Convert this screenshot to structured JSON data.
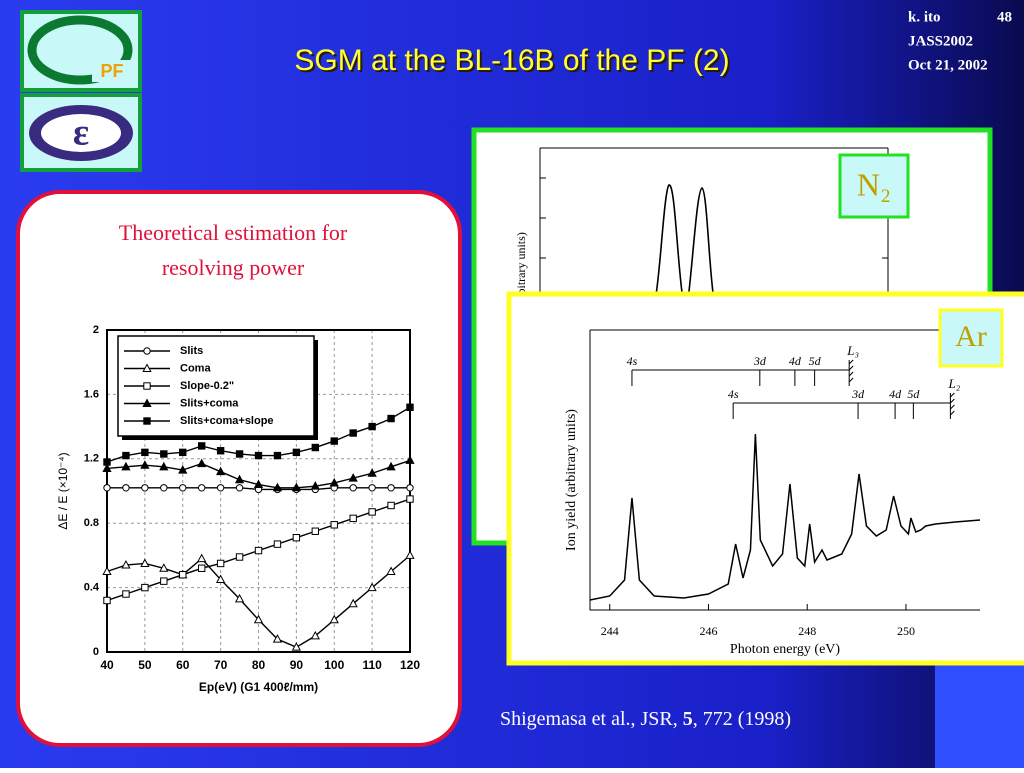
{
  "header": {
    "title": "SGM at the BL-16B of the PF (2)",
    "author": "k. ito",
    "page": "48",
    "conference": "JASS2002",
    "date": "Oct 21, 2002"
  },
  "left_panel": {
    "caption": [
      "Theoretical estimation for",
      "resolving power"
    ]
  },
  "n2_panel": {
    "label": "N₂",
    "y_label": "(arbitrary units)"
  },
  "chart_data": [
    {
      "type": "line",
      "x_label": "Ep(eV)  (G1 400ℓ/mm)",
      "y_label": "ΔE / E (×10⁻⁴)",
      "x": [
        40,
        45,
        50,
        55,
        60,
        65,
        70,
        75,
        80,
        85,
        90,
        95,
        100,
        105,
        110,
        115,
        120
      ],
      "xlim": [
        40,
        120
      ],
      "xticks": [
        40,
        50,
        60,
        70,
        80,
        90,
        100,
        110,
        120
      ],
      "ylim": [
        0,
        2
      ],
      "yticks": [
        0,
        0.4,
        0.8,
        1.2,
        1.6,
        2
      ],
      "grid": true,
      "legend": "top-left",
      "series": [
        {
          "name": "Slits",
          "color": "#000000",
          "marker": "circle-open",
          "values": [
            1.02,
            1.02,
            1.02,
            1.02,
            1.02,
            1.02,
            1.02,
            1.02,
            1.01,
            1.01,
            1.01,
            1.01,
            1.02,
            1.02,
            1.02,
            1.02,
            1.02
          ]
        },
        {
          "name": "Coma",
          "color": "#000000",
          "marker": "triangle-open",
          "values": [
            0.5,
            0.54,
            0.55,
            0.52,
            0.48,
            0.58,
            0.45,
            0.33,
            0.2,
            0.08,
            0.03,
            0.1,
            0.2,
            0.3,
            0.4,
            0.5,
            0.6
          ]
        },
        {
          "name": "Slope-0.2\"",
          "color": "#000000",
          "marker": "square-open",
          "values": [
            0.32,
            0.36,
            0.4,
            0.44,
            0.48,
            0.52,
            0.55,
            0.59,
            0.63,
            0.67,
            0.71,
            0.75,
            0.79,
            0.83,
            0.87,
            0.91,
            0.95
          ]
        },
        {
          "name": "Slits+coma",
          "color": "#000000",
          "marker": "triangle-filled",
          "values": [
            1.14,
            1.15,
            1.16,
            1.15,
            1.13,
            1.17,
            1.12,
            1.07,
            1.04,
            1.02,
            1.02,
            1.03,
            1.05,
            1.08,
            1.11,
            1.15,
            1.19
          ]
        },
        {
          "name": "Slits+coma+slope",
          "color": "#000000",
          "marker": "square-filled",
          "values": [
            1.18,
            1.22,
            1.24,
            1.23,
            1.24,
            1.28,
            1.25,
            1.23,
            1.22,
            1.22,
            1.24,
            1.27,
            1.31,
            1.36,
            1.4,
            1.45,
            1.52
          ]
        }
      ]
    },
    {
      "type": "spectrum",
      "label": "Ar",
      "x_label": "Photon energy (eV)",
      "y_label": "Ion yield (arbitrary units)",
      "x": [
        243.6,
        244.0,
        244.3,
        244.45,
        244.6,
        244.9,
        245.5,
        246.0,
        246.4,
        246.55,
        246.7,
        246.85,
        246.95,
        247.05,
        247.3,
        247.5,
        247.65,
        247.8,
        247.95,
        248.05,
        248.15,
        248.3,
        248.4,
        248.7,
        248.9,
        249.05,
        249.2,
        249.4,
        249.6,
        249.75,
        249.9,
        250.05,
        250.1,
        250.2,
        250.3,
        250.4,
        250.6,
        251.0,
        251.5
      ],
      "values": [
        0.05,
        0.07,
        0.15,
        0.56,
        0.15,
        0.07,
        0.06,
        0.08,
        0.13,
        0.33,
        0.16,
        0.3,
        0.88,
        0.35,
        0.22,
        0.28,
        0.63,
        0.26,
        0.22,
        0.43,
        0.24,
        0.3,
        0.25,
        0.28,
        0.38,
        0.68,
        0.42,
        0.37,
        0.4,
        0.57,
        0.42,
        0.38,
        0.46,
        0.39,
        0.4,
        0.42,
        0.43,
        0.44,
        0.45
      ],
      "xlim": [
        243.6,
        251.5
      ],
      "xticks": [
        244,
        246,
        248,
        250
      ],
      "ylim": [
        0,
        1
      ],
      "series_limits": [
        {
          "edge": "L₃",
          "edge_x": 248.85,
          "lines": [
            {
              "label": "4s",
              "x": 244.45
            },
            {
              "label": "3d",
              "x": 247.04
            },
            {
              "label": "4d",
              "x": 247.75
            },
            {
              "label": "5d",
              "x": 248.15
            }
          ]
        },
        {
          "edge": "L₂",
          "edge_x": 250.9,
          "lines": [
            {
              "label": "4s",
              "x": 246.5
            },
            {
              "label": "3d",
              "x": 249.03
            },
            {
              "label": "4d",
              "x": 249.78
            },
            {
              "label": "5d",
              "x": 250.15
            }
          ]
        }
      ]
    }
  ],
  "citation": {
    "prefix": "Shigemasa et al., JSR, ",
    "volume": "5",
    "suffix": ", 772 (1998)"
  }
}
